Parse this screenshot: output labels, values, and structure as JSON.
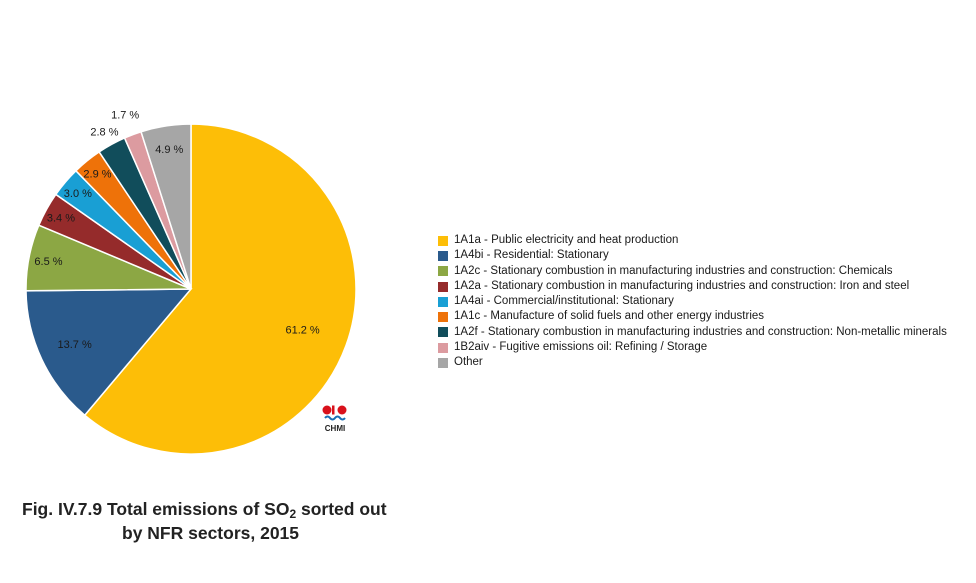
{
  "chart_data": {
    "type": "pie",
    "slices": [
      {
        "label": "1A1a - Public electricity and heat production",
        "value": 61.2,
        "display": "61.2 %",
        "color": "#FDBE07"
      },
      {
        "label": "1A4bi - Residential: Stationary",
        "value": 13.7,
        "display": "13.7 %",
        "color": "#2A5A8C"
      },
      {
        "label": "1A2c - Stationary combustion in manufacturing industries and construction: Chemicals",
        "value": 6.5,
        "display": "6.5 %",
        "color": "#8CA744"
      },
      {
        "label": "1A2a - Stationary combustion in manufacturing industries and construction: Iron and steel",
        "value": 3.4,
        "display": "3.4 %",
        "color": "#952B2B"
      },
      {
        "label": "1A4ai -  Commercial/institutional: Stationary",
        "value": 3.0,
        "display": "3.0 %",
        "color": "#199FD4"
      },
      {
        "label": "1A1c - Manufacture of solid fuels and other energy industries",
        "value": 2.9,
        "display": "2.9 %",
        "color": "#EE7209"
      },
      {
        "label": "1A2f - Stationary combustion in manufacturing industries and construction: Non-metallic minerals",
        "value": 2.8,
        "display": "2.8 %",
        "color": "#114D5B"
      },
      {
        "label": "1B2aiv - Fugitive emissions oil: Refining / Storage",
        "value": 1.7,
        "display": "1.7 %",
        "color": "#DC9BA0"
      },
      {
        "label": "Other",
        "value": 4.9,
        "display": "4.9 %",
        "color": "#A6A6A6"
      }
    ],
    "start": "12 o'clock",
    "direction": "clockwise",
    "legend_position": "right"
  },
  "caption": {
    "prefix": "Fig. IV.7.9  Total emissions of SO",
    "subscript": "2",
    "suffix": " sorted out",
    "line2": "by NFR sectors, 2015"
  },
  "logo": {
    "text": "CHMI"
  }
}
